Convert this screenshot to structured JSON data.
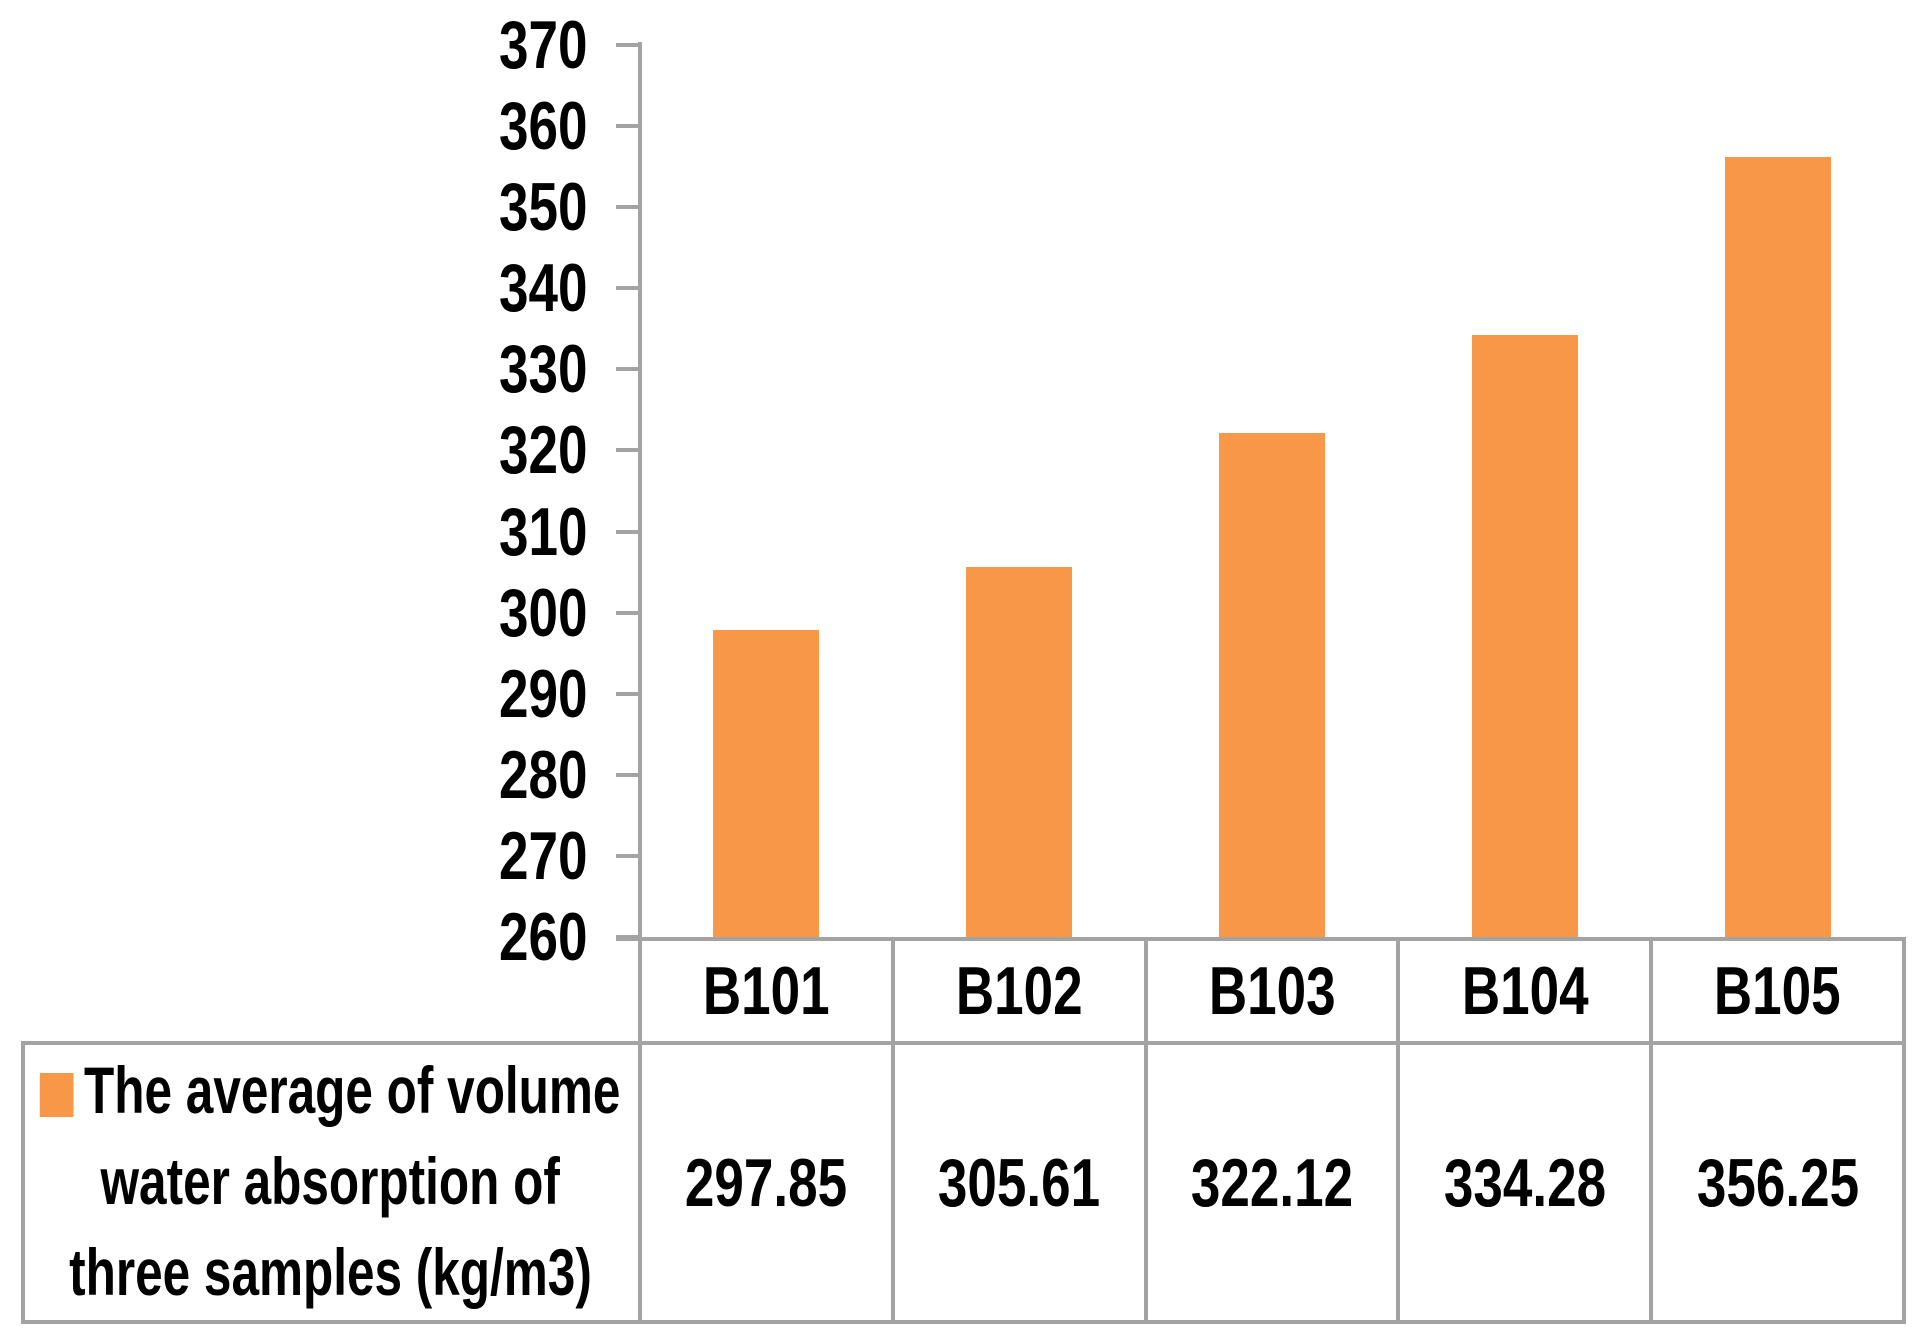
{
  "chart_data": {
    "type": "bar",
    "title": "",
    "xlabel": "",
    "ylabel": "",
    "categories": [
      "B101",
      "B102",
      "B103",
      "B104",
      "B105"
    ],
    "series": [
      {
        "name": "The average of volume water absorption of three samples (kg/m3)",
        "values": [
          297.85,
          305.61,
          322.12,
          334.28,
          356.25
        ]
      }
    ],
    "ylim": [
      260,
      370
    ],
    "yticks": [
      "260",
      "270",
      "280",
      "290",
      "300",
      "310",
      "320",
      "330",
      "340",
      "350",
      "360",
      "370"
    ],
    "ytick_step": 10,
    "grid": false,
    "legend_position": "bottom-left-table-cell",
    "bar_color": "#F89748"
  },
  "table": {
    "category_row": [
      "B101",
      "B102",
      "B103",
      "B104",
      "B105"
    ],
    "value_row": [
      "297.85",
      "305.61",
      "322.12",
      "334.28",
      "356.25"
    ],
    "legend_cell_lines": [
      "The average of volume",
      "water absorption of",
      "three samples (kg/m3)"
    ]
  },
  "colors": {
    "bar": "#F89748",
    "border": "#A3A3A3",
    "text": "#000000",
    "background": "#FFFFFF"
  }
}
